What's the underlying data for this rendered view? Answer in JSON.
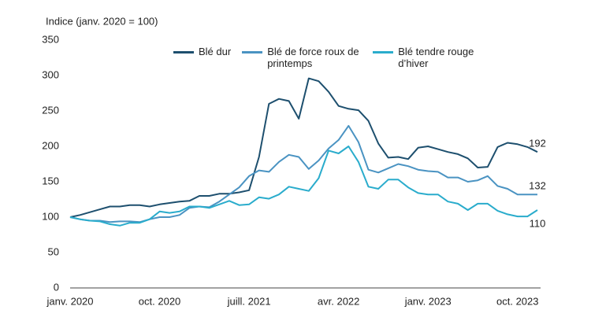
{
  "chart_data": {
    "type": "line",
    "y_axis_label": "Indice (janv. 2020 = 100)",
    "categories": [
      "janv. 2020",
      null,
      null,
      null,
      null,
      null,
      null,
      null,
      null,
      "oct. 2020",
      null,
      null,
      null,
      null,
      null,
      null,
      null,
      null,
      "juill. 2021",
      null,
      null,
      null,
      null,
      null,
      null,
      null,
      null,
      "avr. 2022",
      null,
      null,
      null,
      null,
      null,
      null,
      null,
      null,
      "janv. 2023",
      null,
      null,
      null,
      null,
      null,
      null,
      null,
      null,
      "oct. 2023",
      null,
      null
    ],
    "series": [
      {
        "name": "Blé dur",
        "color": "#1d4f6e",
        "values": [
          100,
          103,
          107,
          111,
          115,
          115,
          117,
          117,
          115,
          118,
          120,
          122,
          123,
          130,
          130,
          133,
          133,
          135,
          138,
          185,
          260,
          267,
          264,
          239,
          296,
          292,
          277,
          257,
          253,
          251,
          236,
          204,
          184,
          185,
          182,
          198,
          200,
          196,
          192,
          189,
          183,
          170,
          171,
          199,
          205,
          203,
          199,
          192
        ]
      },
      {
        "name": "Blé de force roux de printemps",
        "color": "#4a93c2",
        "values": [
          100,
          97,
          95,
          95,
          93,
          94,
          94,
          93,
          97,
          100,
          100,
          103,
          113,
          115,
          114,
          122,
          132,
          142,
          158,
          166,
          164,
          178,
          188,
          185,
          168,
          180,
          197,
          209,
          229,
          206,
          167,
          163,
          169,
          175,
          172,
          167,
          165,
          164,
          156,
          156,
          150,
          152,
          158,
          144,
          140,
          132,
          132,
          132
        ]
      },
      {
        "name": "Blé tendre rouge d’hiver",
        "color": "#2aaccc",
        "values": [
          100,
          97,
          95,
          94,
          90,
          88,
          92,
          92,
          97,
          108,
          106,
          108,
          115,
          115,
          113,
          118,
          123,
          117,
          118,
          128,
          126,
          132,
          143,
          140,
          137,
          155,
          194,
          190,
          200,
          178,
          143,
          140,
          153,
          153,
          142,
          134,
          132,
          132,
          122,
          119,
          110,
          119,
          119,
          109,
          104,
          101,
          101,
          110
        ]
      }
    ],
    "ylim": [
      0,
      350
    ],
    "yticks": [
      0,
      50,
      100,
      150,
      200,
      250,
      300,
      350
    ],
    "grid": false,
    "legend": "top"
  }
}
